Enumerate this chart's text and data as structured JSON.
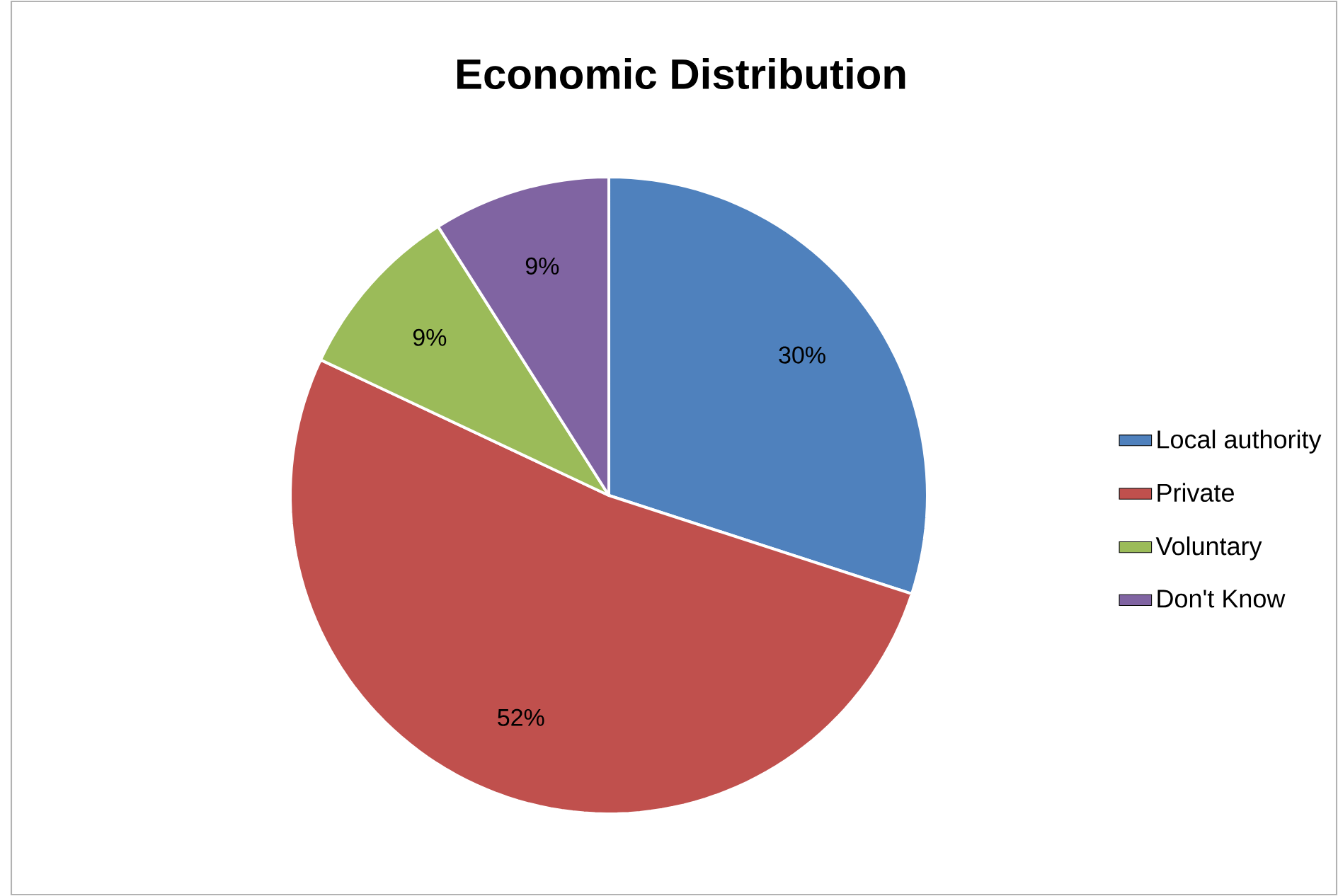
{
  "chart_data": {
    "type": "pie",
    "title": "Economic Distribution",
    "categories": [
      "Local authority",
      "Private",
      "Voluntary",
      "Don't Know"
    ],
    "values": [
      30,
      52,
      9,
      9
    ],
    "colors": [
      "#4f81bd",
      "#c0504d",
      "#9bbb59",
      "#8064a2"
    ],
    "value_labels": [
      "30%",
      "52%",
      "9%",
      "9%"
    ],
    "legend": "right"
  }
}
